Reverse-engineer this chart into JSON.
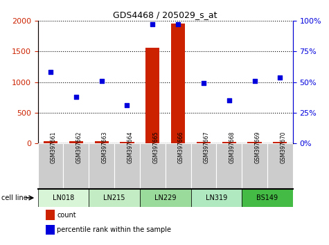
{
  "title": "GDS4468 / 205029_s_at",
  "samples": [
    "GSM397661",
    "GSM397662",
    "GSM397663",
    "GSM397664",
    "GSM397665",
    "GSM397666",
    "GSM397667",
    "GSM397668",
    "GSM397669",
    "GSM397670"
  ],
  "count_values": [
    30,
    30,
    30,
    25,
    1560,
    1960,
    25,
    25,
    25,
    25
  ],
  "percentile_values": [
    58,
    38,
    51,
    31,
    97,
    97,
    49,
    35,
    51,
    54
  ],
  "cell_lines": [
    {
      "label": "LN018",
      "start": 0,
      "end": 2,
      "color": "#d8f5d8"
    },
    {
      "label": "LN215",
      "start": 2,
      "end": 4,
      "color": "#c8eec8"
    },
    {
      "label": "LN229",
      "start": 4,
      "end": 6,
      "color": "#a8dfa8"
    },
    {
      "label": "LN319",
      "start": 6,
      "end": 8,
      "color": "#b8e8c8"
    },
    {
      "label": "BS149",
      "start": 8,
      "end": 10,
      "color": "#55cc55"
    }
  ],
  "left_ylim": [
    0,
    2000
  ],
  "right_ylim": [
    0,
    100
  ],
  "left_yticks": [
    0,
    500,
    1000,
    1500,
    2000
  ],
  "right_yticks": [
    0,
    25,
    50,
    75,
    100
  ],
  "bar_color": "#cc2200",
  "dot_color": "#0000dd",
  "legend_count_color": "#cc2200",
  "legend_dot_color": "#0000dd",
  "sample_box_color": "#cccccc",
  "sample_box_edge": "#888888"
}
